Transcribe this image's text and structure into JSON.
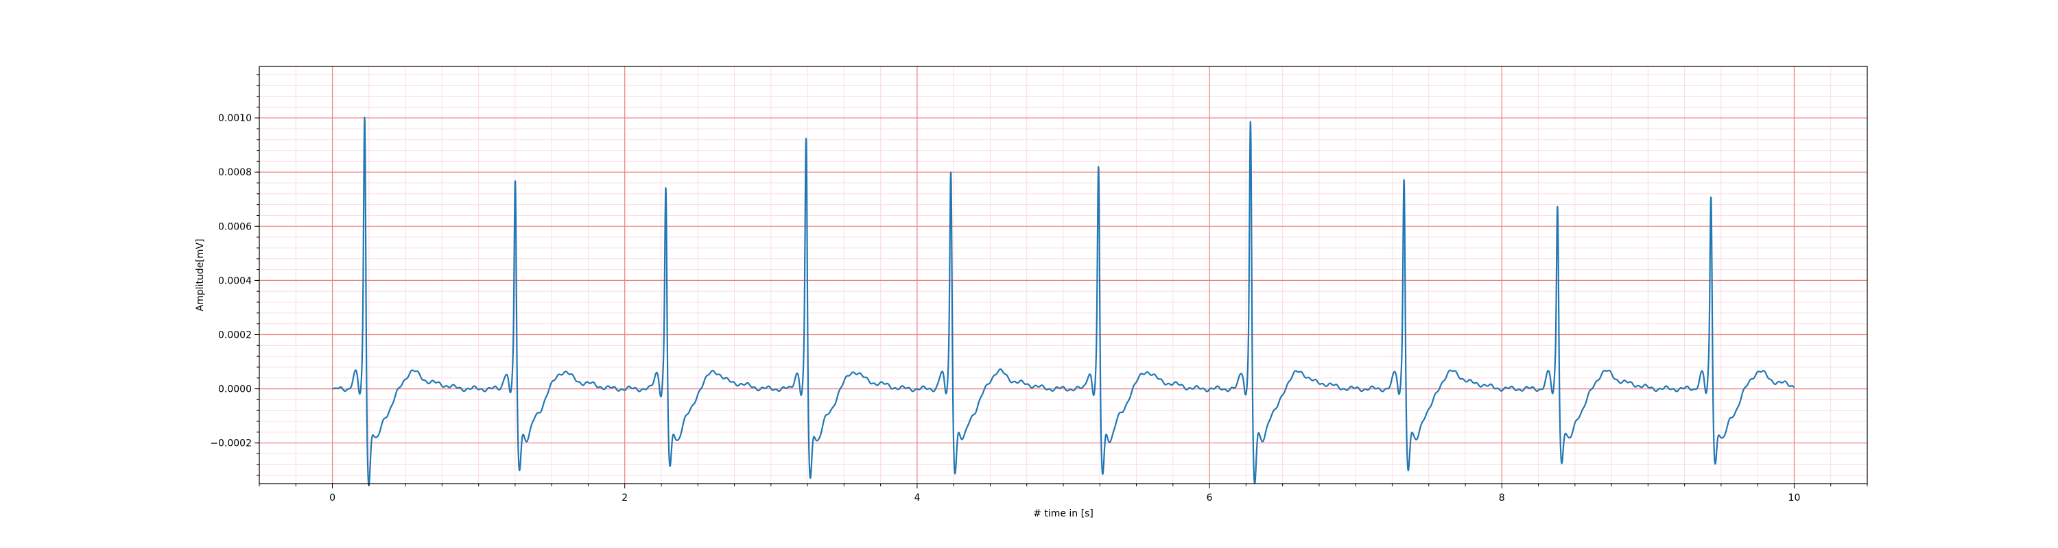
{
  "chart_data": {
    "type": "line",
    "title": "",
    "xlabel": "# time in [s]",
    "ylabel": "Amplitude[mV]",
    "xlim": [
      -0.5,
      10.5
    ],
    "ylim": [
      -0.00035,
      0.00119
    ],
    "x_ticks": [
      0,
      2,
      4,
      6,
      8,
      10
    ],
    "x_tick_labels": [
      "0",
      "2",
      "4",
      "6",
      "8",
      "10"
    ],
    "y_ticks": [
      -0.0002,
      0.0,
      0.0002,
      0.0004,
      0.0006,
      0.0008,
      0.001
    ],
    "y_tick_labels": [
      "−0.0002",
      "0.0000",
      "0.0002",
      "0.0004",
      "0.0006",
      "0.0008",
      "0.0010"
    ],
    "grid": {
      "major": true,
      "minor": true,
      "major_color": "#f08080",
      "minor_color": "#fcdce4"
    },
    "line_color": "#1f77b4",
    "series": [
      {
        "beats": [
          {
            "t": 0.22,
            "r": 0.00112,
            "s": -0.00028
          },
          {
            "t": 1.25,
            "r": 0.00087,
            "s": -0.00022
          },
          {
            "t": 2.28,
            "r": 0.00085,
            "s": -0.00022
          },
          {
            "t": 3.24,
            "r": 0.00103,
            "s": -0.00026
          },
          {
            "t": 4.23,
            "r": 0.00091,
            "s": -0.00023
          },
          {
            "t": 5.24,
            "r": 0.00092,
            "s": -0.00024
          },
          {
            "t": 6.28,
            "r": 0.0011,
            "s": -0.00028
          },
          {
            "t": 7.33,
            "r": 0.00089,
            "s": -0.00023
          },
          {
            "t": 8.38,
            "r": 0.00079,
            "s": -0.0002
          },
          {
            "t": 9.43,
            "r": 0.00082,
            "s": -0.0002
          }
        ],
        "x_range": [
          0,
          10
        ]
      }
    ]
  }
}
